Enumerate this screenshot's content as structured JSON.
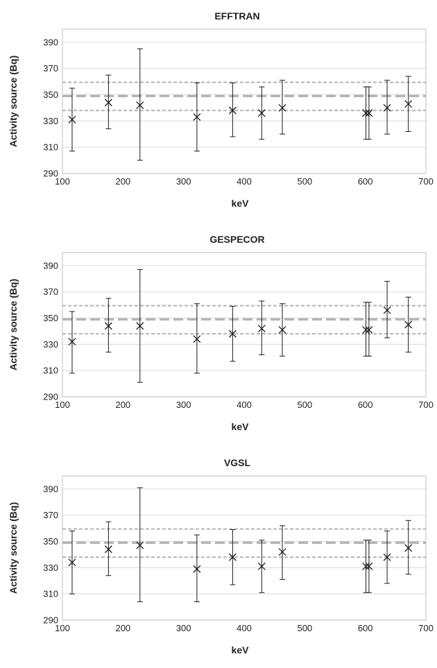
{
  "chart_data": [
    {
      "type": "scatter",
      "title": "EFFTRAN",
      "xlabel": "keV",
      "ylabel": "Activity source (Bq)",
      "xlim": [
        100,
        700
      ],
      "ylim": [
        290,
        400
      ],
      "xticks": [
        "100",
        "200",
        "300",
        "400",
        "500",
        "600",
        "700"
      ],
      "yticks": [
        "290",
        "310",
        "330",
        "350",
        "370",
        "390"
      ],
      "grid": "horizontal",
      "marker": "x",
      "reference_lines": {
        "mean": 349,
        "lower": 338,
        "upper": 359.5
      },
      "x": [
        116,
        176,
        228,
        322,
        381,
        429,
        463,
        601,
        606,
        636,
        671
      ],
      "y": [
        331,
        344,
        342,
        333,
        338,
        336,
        340,
        336,
        336,
        340,
        343
      ],
      "y_low": [
        307,
        324,
        300,
        307,
        318,
        316,
        320,
        316,
        316,
        320,
        322
      ],
      "y_high": [
        355,
        365,
        385,
        359,
        359,
        356,
        361,
        356,
        356,
        361,
        364
      ]
    },
    {
      "type": "scatter",
      "title": "GESPECOR",
      "xlabel": "keV",
      "ylabel": "Activity source (Bq)",
      "xlim": [
        100,
        700
      ],
      "ylim": [
        290,
        400
      ],
      "xticks": [
        "100",
        "200",
        "300",
        "400",
        "500",
        "600",
        "700"
      ],
      "yticks": [
        "290",
        "310",
        "330",
        "350",
        "370",
        "390"
      ],
      "grid": "horizontal",
      "marker": "x",
      "reference_lines": {
        "mean": 349,
        "lower": 338,
        "upper": 359.5
      },
      "x": [
        116,
        176,
        228,
        322,
        381,
        429,
        463,
        601,
        606,
        636,
        671
      ],
      "y": [
        332,
        344,
        344,
        334,
        338,
        342,
        341,
        341,
        341,
        356,
        345
      ],
      "y_low": [
        308,
        324,
        301,
        308,
        317,
        322,
        321,
        321,
        321,
        335,
        324
      ],
      "y_high": [
        355,
        365,
        387,
        361,
        359,
        363,
        361,
        362,
        362,
        378,
        366
      ]
    },
    {
      "type": "scatter",
      "title": "VGSL",
      "xlabel": "keV",
      "ylabel": "Activity source (Bq)",
      "xlim": [
        100,
        700
      ],
      "ylim": [
        290,
        400
      ],
      "xticks": [
        "100",
        "200",
        "300",
        "400",
        "500",
        "600",
        "700"
      ],
      "yticks": [
        "290",
        "310",
        "330",
        "350",
        "370",
        "390"
      ],
      "grid": "horizontal",
      "marker": "x",
      "reference_lines": {
        "mean": 349,
        "lower": 338,
        "upper": 359.5
      },
      "x": [
        116,
        176,
        228,
        322,
        381,
        429,
        463,
        601,
        606,
        636,
        671
      ],
      "y": [
        334,
        344,
        347,
        329,
        338,
        331,
        342,
        331,
        331,
        338,
        345
      ],
      "y_low": [
        310,
        324,
        304,
        304,
        317,
        311,
        321,
        311,
        311,
        318,
        325
      ],
      "y_high": [
        358,
        365,
        391,
        355,
        359,
        351,
        362,
        351,
        351,
        358,
        366
      ]
    }
  ],
  "colors": {
    "marker": "#1a1a1a",
    "errorbar": "#1a1a1a",
    "reference": "#b4b4b4",
    "gridline": "#d9d9d9",
    "plot_border": "#bfbfbf"
  }
}
